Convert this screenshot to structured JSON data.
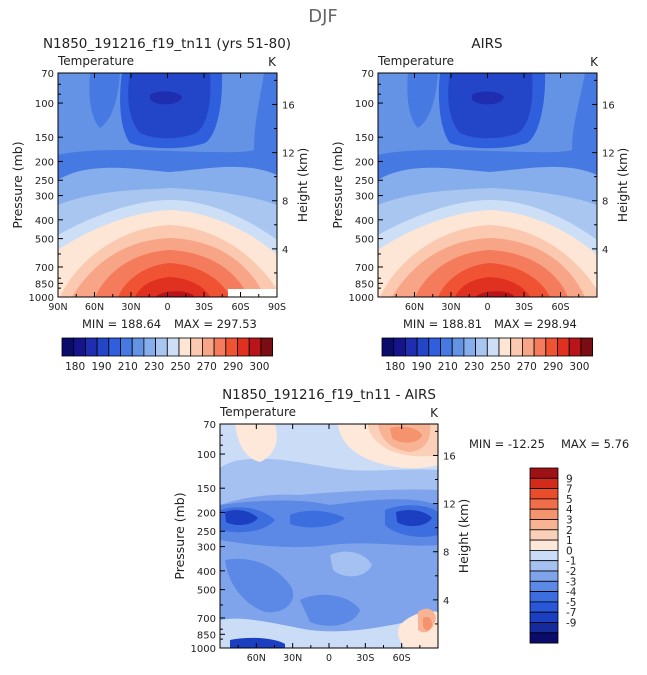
{
  "figure_title": "DJF",
  "colors": {
    "temperature_scale": [
      "#0b0b6b",
      "#14148c",
      "#1f2db0",
      "#2346c8",
      "#2f5fdc",
      "#4779e2",
      "#6493e6",
      "#86aeec",
      "#a9c6f1",
      "#cddff7",
      "#fde6d6",
      "#fbc8b0",
      "#f8a587",
      "#f47c5c",
      "#ef5333",
      "#e03120",
      "#b8141a",
      "#7a0d12"
    ],
    "difference_scale": [
      "#0b0b6b",
      "#152a9c",
      "#1c3fc2",
      "#2a56d8",
      "#3d6ee0",
      "#5c89e6",
      "#7fa4eb",
      "#a5c1f2",
      "#cbdcf7",
      "#fde8da",
      "#fbd0b9",
      "#f8b394",
      "#f5936e",
      "#f06e49",
      "#ea4d2b",
      "#d22a1b",
      "#9e1114"
    ]
  },
  "chart_data": [
    {
      "type": "contour",
      "id": "model",
      "title": "N1850_191216_f19_tn11 (yrs 51-80)",
      "left_label": "Temperature",
      "right_label": "K",
      "xlabel": "",
      "ylabel": "Pressure (mb)",
      "y2label": "Height (km)",
      "x_ticks": [
        "90N",
        "60N",
        "30N",
        "0",
        "30S",
        "60S",
        "90S"
      ],
      "y_ticks": [
        70,
        100,
        150,
        200,
        250,
        300,
        400,
        500,
        700,
        850,
        1000
      ],
      "y2_ticks": [
        16,
        12,
        8,
        4
      ],
      "stats": {
        "min_label": "MIN = 188.64",
        "max_label": "MAX = 297.53"
      },
      "colorbar_labels": [
        "180",
        "190",
        "210",
        "230",
        "250",
        "270",
        "290",
        "300"
      ],
      "levels": [
        180,
        185,
        190,
        195,
        200,
        205,
        210,
        220,
        230,
        240,
        250,
        260,
        270,
        275,
        280,
        285,
        290,
        300
      ]
    },
    {
      "type": "contour",
      "id": "airs",
      "title": "AIRS",
      "left_label": "Temperature",
      "right_label": "K",
      "xlabel": "",
      "ylabel": "Pressure (mb)",
      "y2label": "Height (km)",
      "x_ticks": [
        "60N",
        "30N",
        "0",
        "30S",
        "60S"
      ],
      "y_ticks": [
        70,
        100,
        150,
        200,
        250,
        300,
        400,
        500,
        700,
        850,
        1000
      ],
      "y2_ticks": [
        16,
        12,
        8,
        4
      ],
      "stats": {
        "min_label": "MIN = 188.81",
        "max_label": "MAX = 298.94"
      },
      "colorbar_labels": [
        "180",
        "190",
        "210",
        "230",
        "250",
        "270",
        "290",
        "300"
      ],
      "levels": [
        180,
        185,
        190,
        195,
        200,
        205,
        210,
        220,
        230,
        240,
        250,
        260,
        270,
        275,
        280,
        285,
        290,
        300
      ]
    },
    {
      "type": "contour",
      "id": "diff",
      "title": "N1850_191216_f19_tn11 - AIRS",
      "left_label": "Temperature",
      "right_label": "K",
      "xlabel": "",
      "ylabel": "Pressure (mb)",
      "y2label": "Height (km)",
      "x_ticks": [
        "60N",
        "30N",
        "0",
        "30S",
        "60S"
      ],
      "y_ticks": [
        70,
        100,
        150,
        200,
        250,
        300,
        400,
        500,
        700,
        850,
        1000
      ],
      "y2_ticks": [
        16,
        12,
        8,
        4
      ],
      "stats": {
        "min_label": "MIN = -12.25",
        "max_label": "MAX =    5.76"
      },
      "colorbar_labels": [
        "9",
        "7",
        "5",
        "4",
        "3",
        "2",
        "1",
        "0",
        "-1",
        "-2",
        "-3",
        "-4",
        "-5",
        "-7",
        "-9"
      ],
      "levels": [
        -9,
        -7,
        -5,
        -4,
        -3,
        -2,
        -1,
        0,
        1,
        2,
        3,
        4,
        5,
        7,
        9
      ]
    }
  ]
}
